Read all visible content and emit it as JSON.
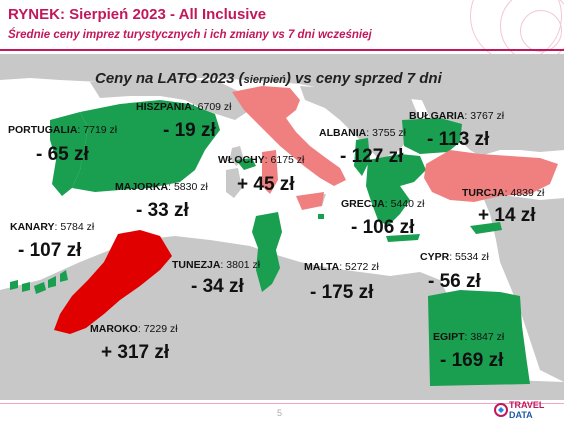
{
  "header": {
    "title": "RYNEK: Sierpień 2023 - All Inclusive",
    "subtitle": "Średnie ceny imprez turystycznych i ich zmiany vs 7 dni wcześniej"
  },
  "map": {
    "heading_main": "Ceny na LATO 2023 (",
    "heading_small": "sierpień",
    "heading_end": ") vs ceny sprzed 7 dni",
    "colors": {
      "land": "#c8c8c8",
      "increase_small": "#f08080",
      "increase_large": "#e00000",
      "decrease": "#1a9e50"
    },
    "countries": [
      {
        "name": "PORTUGALIA",
        "price": "7719 zł",
        "change": "- 65 zł"
      },
      {
        "name": "HISZPANIA",
        "price": "6709 zł",
        "change": "- 19 zł"
      },
      {
        "name": "WŁOCHY",
        "price": "6175 zł",
        "change": "+ 45 zł"
      },
      {
        "name": "MAJORKA",
        "price": "5830 zł",
        "change": "- 33 zł"
      },
      {
        "name": "ALBANIA",
        "price": "3755 zł",
        "change": "- 127 zł"
      },
      {
        "name": "BUŁGARIA",
        "price": "3767 zł",
        "change": "- 113 zł"
      },
      {
        "name": "TURCJA",
        "price": "4839 zł",
        "change": "+ 14 zł"
      },
      {
        "name": "GRECJA",
        "price": "5440 zł",
        "change": "- 106 zł"
      },
      {
        "name": "KANARY",
        "price": "5784 zł",
        "change": "- 107 zł"
      },
      {
        "name": "TUNEZJA",
        "price": "3801 zł",
        "change": "- 34 zł"
      },
      {
        "name": "MALTA",
        "price": "5272 zł",
        "change": "- 175 zł"
      },
      {
        "name": "CYPR",
        "price": "5534 zł",
        "change": "- 56 zł"
      },
      {
        "name": "MAROKO",
        "price": "7229 zł",
        "change": "+ 317 zł"
      },
      {
        "name": "EGIPT",
        "price": "3847 zł",
        "change": "- 169 zł"
      }
    ]
  },
  "footer": {
    "page_number": "5",
    "logo_line1": "TRAVEL",
    "logo_line2": "DATA"
  }
}
